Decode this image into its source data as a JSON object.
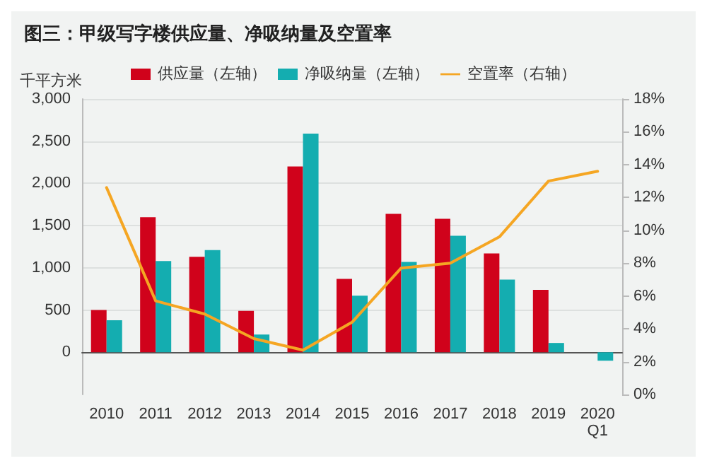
{
  "chart_data": {
    "type": "bar",
    "title": "图三：甲级写字楼供应量、净吸纳量及空置率",
    "ylabel": "千平方米",
    "categories": [
      "2010",
      "2011",
      "2012",
      "2013",
      "2014",
      "2015",
      "2016",
      "2017",
      "2018",
      "2019",
      "2020\nQ1"
    ],
    "series": [
      {
        "name": "供应量（左轴）",
        "color": "#d0021b",
        "values": [
          500,
          1600,
          1130,
          490,
          2200,
          870,
          1640,
          1580,
          1170,
          740,
          null
        ]
      },
      {
        "name": "净吸纳量（左轴）",
        "color": "#14adb0",
        "values": [
          380,
          1080,
          1210,
          210,
          2590,
          670,
          1070,
          1380,
          860,
          110,
          -100
        ]
      },
      {
        "name": "空置率（右轴）",
        "type": "line",
        "axis": "y2",
        "color": "#f5a623",
        "values": [
          12.6,
          5.7,
          4.9,
          3.4,
          2.7,
          4.4,
          7.7,
          8.0,
          9.6,
          13.0,
          13.6
        ]
      }
    ],
    "ylim": [
      -500,
      3000
    ],
    "yticks": [
      0,
      {
        "value": 500,
        "label": "500"
      },
      {
        "value": 1000,
        "label": "1,000"
      },
      {
        "value": 1500,
        "label": "1,500"
      },
      {
        "value": 2000,
        "label": "2,000"
      },
      {
        "value": 2500,
        "label": "2,500"
      },
      {
        "value": 3000,
        "label": "3,000"
      }
    ],
    "y2lim": [
      0,
      18
    ],
    "y2ticks": [
      {
        "value": 0,
        "label": "0%"
      },
      {
        "value": 2,
        "label": "2%"
      },
      {
        "value": 4,
        "label": "4%"
      },
      {
        "value": 6,
        "label": "6%"
      },
      {
        "value": 8,
        "label": "8%"
      },
      {
        "value": 10,
        "label": "10%"
      },
      {
        "value": 12,
        "label": "12%"
      },
      {
        "value": 14,
        "label": "14%"
      },
      {
        "value": 16,
        "label": "16%"
      },
      {
        "value": 18,
        "label": "18%"
      }
    ],
    "legend": "top",
    "grid": "y",
    "marker": "none",
    "line_style": "solid"
  }
}
